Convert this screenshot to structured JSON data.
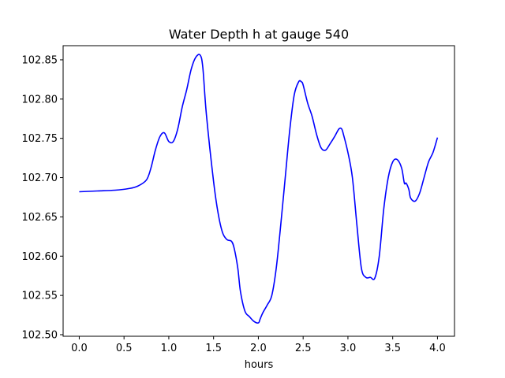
{
  "chart_data": {
    "type": "line",
    "title": "Water Depth h at gauge 540",
    "xlabel": "hours",
    "ylabel": "",
    "xlim": [
      -0.18,
      4.19
    ],
    "ylim": [
      102.498,
      102.868
    ],
    "grid": false,
    "legend": "none",
    "x_ticks": [
      0.0,
      0.5,
      1.0,
      1.5,
      2.0,
      2.5,
      3.0,
      3.5,
      4.0
    ],
    "x_tick_labels": [
      "0.0",
      "0.5",
      "1.0",
      "1.5",
      "2.0",
      "2.5",
      "3.0",
      "3.5",
      "4.0"
    ],
    "y_ticks": [
      102.5,
      102.55,
      102.6,
      102.65,
      102.7,
      102.75,
      102.8,
      102.85
    ],
    "y_tick_labels": [
      "102.50",
      "102.55",
      "102.60",
      "102.65",
      "102.70",
      "102.75",
      "102.80",
      "102.85"
    ],
    "series": [
      {
        "color": "#0000ff",
        "x": [
          0.0,
          0.2,
          0.4,
          0.55,
          0.65,
          0.75,
          0.8,
          0.85,
          0.9,
          0.95,
          1.0,
          1.05,
          1.1,
          1.15,
          1.2,
          1.25,
          1.3,
          1.35,
          1.38,
          1.42,
          1.5,
          1.55,
          1.6,
          1.65,
          1.7,
          1.73,
          1.77,
          1.8,
          1.85,
          1.9,
          1.95,
          2.0,
          2.02,
          2.05,
          2.1,
          2.15,
          2.2,
          2.25,
          2.3,
          2.35,
          2.4,
          2.45,
          2.48,
          2.5,
          2.55,
          2.6,
          2.65,
          2.7,
          2.75,
          2.8,
          2.85,
          2.9,
          2.93,
          2.95,
          3.0,
          3.05,
          3.1,
          3.15,
          3.2,
          3.25,
          3.3,
          3.35,
          3.4,
          3.45,
          3.5,
          3.55,
          3.6,
          3.63,
          3.65,
          3.68,
          3.7,
          3.75,
          3.8,
          3.85,
          3.9,
          3.95,
          4.0
        ],
        "y": [
          102.682,
          102.683,
          102.684,
          102.686,
          102.689,
          102.697,
          102.712,
          102.735,
          102.752,
          102.757,
          102.746,
          102.746,
          102.762,
          102.79,
          102.812,
          102.838,
          102.853,
          102.856,
          102.84,
          102.78,
          102.695,
          102.655,
          102.63,
          102.621,
          102.619,
          102.61,
          102.585,
          102.555,
          102.53,
          102.523,
          102.517,
          102.515,
          102.52,
          102.528,
          102.538,
          102.55,
          102.585,
          102.64,
          102.7,
          102.76,
          102.805,
          102.822,
          102.822,
          102.818,
          102.795,
          102.778,
          102.755,
          102.738,
          102.735,
          102.743,
          102.752,
          102.762,
          102.762,
          102.755,
          102.732,
          102.7,
          102.64,
          102.585,
          102.573,
          102.573,
          102.572,
          102.6,
          102.66,
          102.7,
          102.72,
          102.723,
          102.712,
          102.693,
          102.693,
          102.685,
          102.674,
          102.67,
          102.68,
          102.7,
          102.72,
          102.732,
          102.751
        ]
      }
    ]
  }
}
